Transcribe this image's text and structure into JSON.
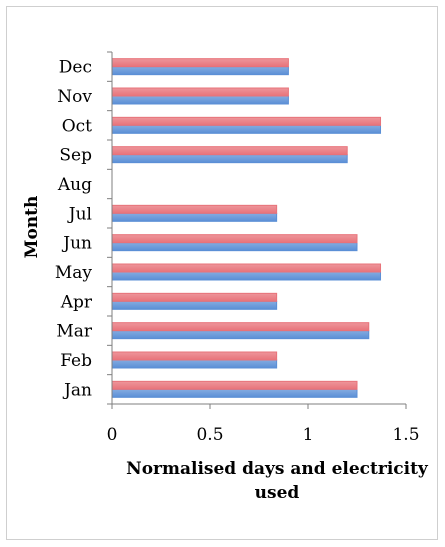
{
  "chart_data": {
    "type": "bar",
    "orientation": "horizontal",
    "title": "",
    "xlabel_lines": [
      "Normalised days and electricity",
      "used"
    ],
    "ylabel": "Month",
    "categories": [
      "Jan",
      "Feb",
      "Mar",
      "Apr",
      "May",
      "Jun",
      "Jul",
      "Aug",
      "Sep",
      "Oct",
      "Nov",
      "Dec"
    ],
    "series": [
      {
        "color": "#5b8fd6",
        "values": [
          1.25,
          0.84,
          1.31,
          0.84,
          1.37,
          1.25,
          0.84,
          0,
          1.2,
          1.37,
          0.9,
          0.9
        ]
      },
      {
        "color": "#e8737a",
        "values": [
          1.25,
          0.84,
          1.31,
          0.84,
          1.37,
          1.25,
          0.84,
          0,
          1.2,
          1.37,
          0.9,
          0.9
        ]
      }
    ],
    "xlim": [
      0,
      1.5
    ],
    "xticks": [
      0,
      0.5,
      1,
      1.5
    ],
    "xtick_labels": [
      "0",
      "0.5",
      "1",
      "1.5"
    ],
    "grid": false,
    "legend": "none"
  }
}
